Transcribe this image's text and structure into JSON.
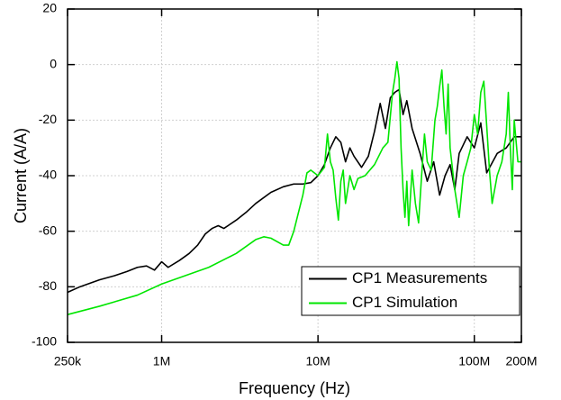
{
  "chart_data": {
    "type": "line",
    "xlabel": "Frequency (Hz)",
    "ylabel": "Current (A/A)",
    "xscale": "log",
    "xlim": [
      250000,
      200000000
    ],
    "ylim": [
      -100,
      20
    ],
    "xticks": [
      {
        "value": 250000,
        "label": "250k"
      },
      {
        "value": 1000000,
        "label": "1M"
      },
      {
        "value": 10000000,
        "label": "10M"
      },
      {
        "value": 100000000,
        "label": "100M"
      },
      {
        "value": 200000000,
        "label": "200M"
      }
    ],
    "yticks": [
      20,
      0,
      -20,
      -40,
      -60,
      -80,
      -100
    ],
    "grid": true,
    "legend": "lower right",
    "series": [
      {
        "name": "CP1 Measurements",
        "color": "#000000",
        "x": [
          250000,
          300000,
          400000,
          500000,
          600000,
          700000,
          800000,
          900000,
          1000000,
          1100000,
          1300000,
          1500000,
          1700000,
          1900000,
          2100000,
          2300000,
          2500000,
          3000000,
          3500000,
          4000000,
          5000000,
          6000000,
          7000000,
          8000000,
          9000000,
          10000000,
          11000000,
          12000000,
          13000000,
          14000000,
          15000000,
          16000000,
          17000000,
          19000000,
          21000000,
          23000000,
          25000000,
          27000000,
          29000000,
          31000000,
          33000000,
          35000000,
          37000000,
          40000000,
          45000000,
          50000000,
          55000000,
          60000000,
          65000000,
          70000000,
          75000000,
          80000000,
          90000000,
          100000000,
          110000000,
          120000000,
          140000000,
          160000000,
          180000000,
          200000000
        ],
        "values": [
          -82,
          -80,
          -77.5,
          -76,
          -74.5,
          -73,
          -72.5,
          -74,
          -71,
          -73,
          -70.5,
          -68,
          -65,
          -61,
          -59,
          -58,
          -59,
          -56,
          -53,
          -50,
          -46,
          -44,
          -43,
          -43,
          -42.5,
          -40,
          -36,
          -30,
          -26,
          -28,
          -35,
          -30,
          -33,
          -37,
          -33,
          -24,
          -14,
          -23,
          -12,
          -10,
          -9,
          -18,
          -13,
          -23,
          -32,
          -42,
          -35,
          -47,
          -40,
          -36,
          -45,
          -32,
          -26,
          -30,
          -21,
          -39,
          -32,
          -30,
          -26,
          -26
        ]
      },
      {
        "name": "CP1 Simulation",
        "color": "#00e600",
        "x": [
          250000,
          400000,
          700000,
          1000000,
          2000000,
          3000000,
          4000000,
          4500000,
          5000000,
          6000000,
          6500000,
          7000000,
          8000000,
          8500000,
          9000000,
          10000000,
          11000000,
          11500000,
          12000000,
          12500000,
          13000000,
          13500000,
          14000000,
          14500000,
          15000000,
          16000000,
          17000000,
          18000000,
          20000000,
          23000000,
          26000000,
          28000000,
          30000000,
          31000000,
          32000000,
          33000000,
          34000000,
          35000000,
          36000000,
          37000000,
          38000000,
          40000000,
          42000000,
          44000000,
          46000000,
          48000000,
          50000000,
          53000000,
          56000000,
          58000000,
          60000000,
          62000000,
          64000000,
          66000000,
          68000000,
          70000000,
          75000000,
          80000000,
          85000000,
          90000000,
          95000000,
          100000000,
          105000000,
          110000000,
          115000000,
          120000000,
          125000000,
          130000000,
          140000000,
          150000000,
          160000000,
          165000000,
          170000000,
          175000000,
          180000000,
          190000000,
          200000000
        ],
        "values": [
          -90,
          -87,
          -83,
          -79,
          -73,
          -68,
          -63,
          -62,
          -62.5,
          -65,
          -65,
          -60,
          -47,
          -39,
          -38,
          -40,
          -37,
          -25,
          -35,
          -38,
          -48,
          -56,
          -42,
          -38,
          -50,
          -40,
          -45,
          -41,
          -40,
          -36,
          -30,
          -28,
          -10,
          -5,
          1,
          -5,
          -30,
          -45,
          -55,
          -42,
          -58,
          -38,
          -50,
          -57,
          -40,
          -25,
          -35,
          -38,
          -20,
          -15,
          -8,
          -2,
          -15,
          -25,
          -7,
          -30,
          -45,
          -55,
          -40,
          -35,
          -30,
          -18,
          -25,
          -10,
          -6,
          -22,
          -38,
          -50,
          -40,
          -35,
          -25,
          -10,
          -30,
          -45,
          -20,
          -35,
          -35
        ]
      }
    ]
  }
}
